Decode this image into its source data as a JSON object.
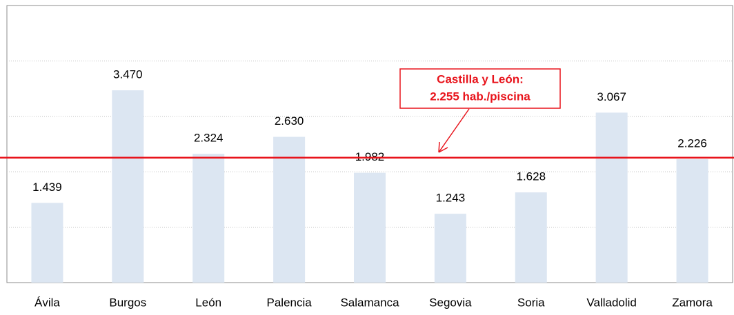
{
  "chart_data": {
    "type": "bar",
    "categories": [
      "Ávila",
      "Burgos",
      "León",
      "Palencia",
      "Salamanca",
      "Segovia",
      "Soria",
      "Valladolid",
      "Zamora"
    ],
    "values": [
      1439,
      3470,
      2324,
      2630,
      1982,
      1243,
      1628,
      3067,
      2226
    ],
    "value_labels": [
      "1.439",
      "3.470",
      "2.324",
      "2.630",
      "1.982",
      "1.243",
      "1.628",
      "3.067",
      "2.226"
    ],
    "color": "#dce6f2",
    "ylim": [
      0,
      5000
    ],
    "yticks": [
      0,
      1000,
      2000,
      3000,
      4000,
      5000
    ],
    "grid": true,
    "reference_line": {
      "value": 2255,
      "color": "#e8141c"
    },
    "annotation": [
      "Castilla y León:",
      "2.255 hab./piscina"
    ]
  }
}
